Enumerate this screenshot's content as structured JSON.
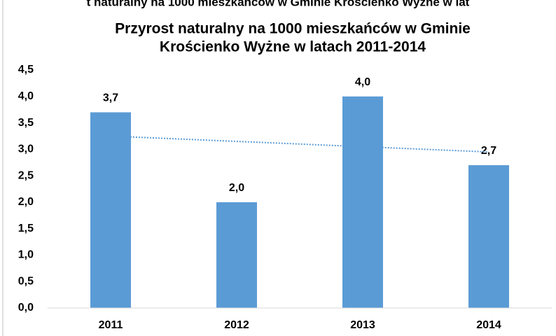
{
  "top_caption": "t naturalny na 1000 mieszkańców w Gminie Krościenko Wyżne w lat",
  "chart_data": {
    "type": "bar",
    "title": [
      "Przyrost naturalny na 1000 mieszkańców w Gminie",
      "Krościenko Wyżne w latach 2011-2014"
    ],
    "categories": [
      "2011",
      "2012",
      "2013",
      "2014"
    ],
    "values": [
      3.7,
      2.0,
      4.0,
      2.7
    ],
    "value_labels": [
      "3,7",
      "2,0",
      "4,0",
      "2,7"
    ],
    "color": "#5b9bd5",
    "trendline": "linear",
    "ylim": [
      0,
      4.5
    ],
    "yticks": [
      {
        "value": 0,
        "label": "0,0"
      },
      {
        "value": 0.5,
        "label": "0,5"
      },
      {
        "value": 1,
        "label": "1,0"
      },
      {
        "value": 1.5,
        "label": "1,5"
      },
      {
        "value": 2,
        "label": "2,0"
      },
      {
        "value": 2.5,
        "label": "2,5"
      },
      {
        "value": 3,
        "label": "3,0"
      },
      {
        "value": 3.5,
        "label": "3,5"
      },
      {
        "value": 4,
        "label": "4,0"
      },
      {
        "value": 4.5,
        "label": "4,5"
      }
    ],
    "grid": false
  }
}
